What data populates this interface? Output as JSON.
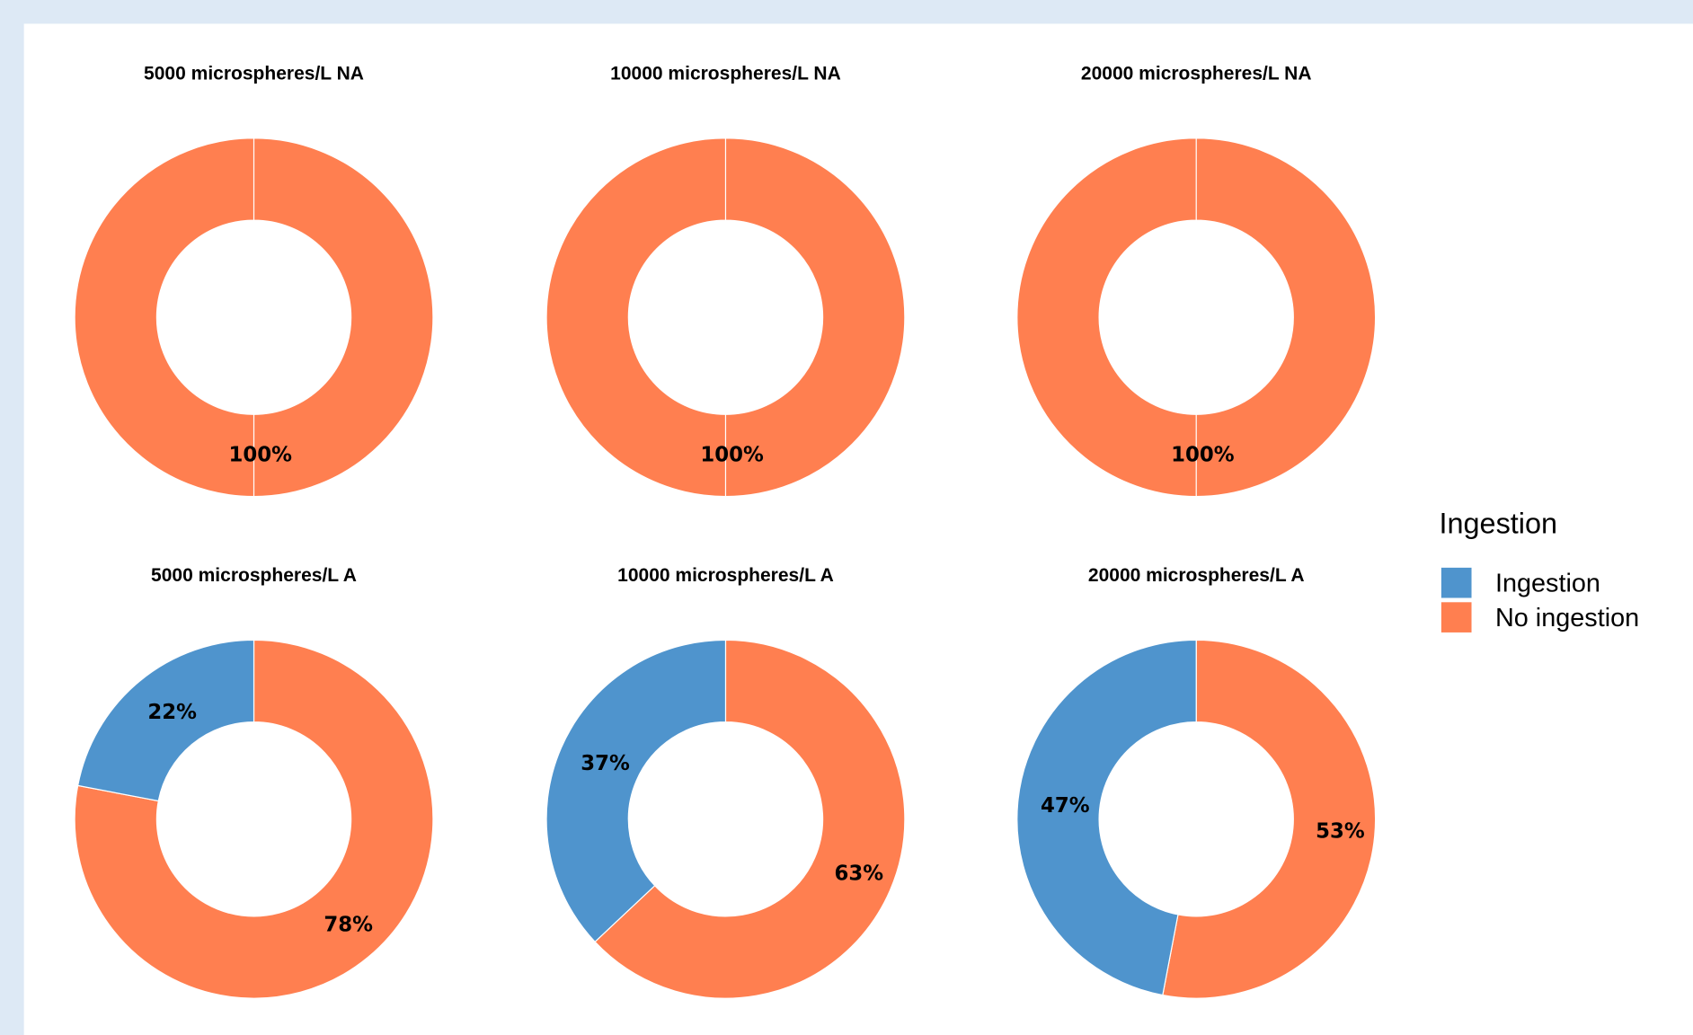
{
  "chart_data": [
    {
      "type": "donut",
      "title": "5000 microspheres/L NA",
      "values": [
        0,
        100
      ],
      "value_labels": [
        null,
        "100%"
      ]
    },
    {
      "type": "donut",
      "title": "10000 microspheres/L NA",
      "values": [
        0,
        100
      ],
      "value_labels": [
        null,
        "100%"
      ]
    },
    {
      "type": "donut",
      "title": "20000 microspheres/L NA",
      "values": [
        0,
        100
      ],
      "value_labels": [
        null,
        "100%"
      ]
    },
    {
      "type": "donut",
      "title": "5000 microspheres/L A",
      "values": [
        22,
        78
      ],
      "value_labels": [
        "22%",
        "78%"
      ]
    },
    {
      "type": "donut",
      "title": "10000 microspheres/L A",
      "values": [
        37,
        63
      ],
      "value_labels": [
        "37%",
        "63%"
      ]
    },
    {
      "type": "donut",
      "title": "20000 microspheres/L A",
      "values": [
        47,
        53
      ],
      "value_labels": [
        "47%",
        "53%"
      ]
    }
  ],
  "legend": {
    "title": "Ingestion",
    "items": [
      {
        "name": "Ingestion",
        "color": "#4f94cd"
      },
      {
        "name": "No ingestion",
        "color": "#ff7f50"
      }
    ]
  }
}
